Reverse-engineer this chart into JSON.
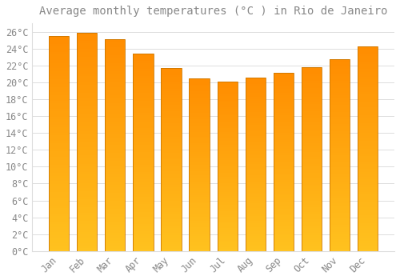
{
  "title": "Average monthly temperatures (°C ) in Rio de Janeiro",
  "months": [
    "Jan",
    "Feb",
    "Mar",
    "Apr",
    "May",
    "Jun",
    "Jul",
    "Aug",
    "Sep",
    "Oct",
    "Nov",
    "Dec"
  ],
  "temperatures": [
    25.5,
    25.9,
    25.1,
    23.4,
    21.7,
    20.5,
    20.1,
    20.6,
    21.1,
    21.8,
    22.7,
    24.3
  ],
  "bar_color_bottom": "#FFB300",
  "bar_color_top": "#FF8C00",
  "bar_edge_color": "#CC6600",
  "background_color": "#FFFFFF",
  "plot_bg_color": "#FFFFFF",
  "grid_color": "#DDDDDD",
  "text_color": "#888888",
  "ylim": [
    0,
    27
  ],
  "yticks": [
    0,
    2,
    4,
    6,
    8,
    10,
    12,
    14,
    16,
    18,
    20,
    22,
    24,
    26
  ],
  "title_fontsize": 10,
  "tick_fontsize": 8.5,
  "figsize": [
    5.0,
    3.5
  ],
  "dpi": 100,
  "bar_width": 0.72
}
